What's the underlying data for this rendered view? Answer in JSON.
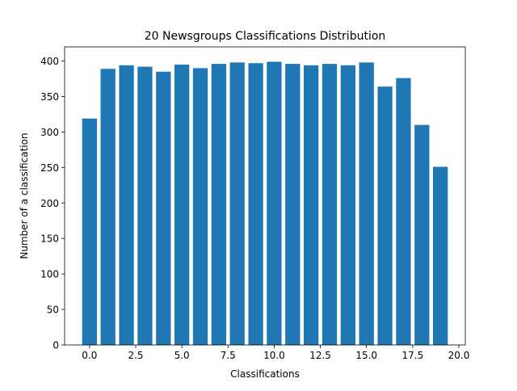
{
  "chart_data": {
    "type": "bar",
    "title": "20 Newsgroups Classifications Distribution",
    "xlabel": "Classifications",
    "ylabel": "Number of a classification",
    "x": [
      0,
      1,
      2,
      3,
      4,
      5,
      6,
      7,
      8,
      9,
      10,
      11,
      12,
      13,
      14,
      15,
      16,
      17,
      18,
      19
    ],
    "values": [
      319,
      389,
      394,
      392,
      385,
      395,
      390,
      396,
      398,
      397,
      399,
      396,
      394,
      396,
      394,
      398,
      364,
      376,
      310,
      251
    ],
    "bar_width": 0.8,
    "xlim": [
      -1.35,
      20.35
    ],
    "ylim": [
      0,
      420
    ],
    "xticks": [
      0,
      2.5,
      5,
      7.5,
      10,
      12.5,
      15,
      17.5,
      20
    ],
    "xtick_labels": [
      "0.0",
      "2.5",
      "5.0",
      "7.5",
      "10.0",
      "12.5",
      "15.0",
      "17.5",
      "20.0"
    ],
    "yticks": [
      0,
      50,
      100,
      150,
      200,
      250,
      300,
      350,
      400
    ],
    "ytick_labels": [
      "0",
      "50",
      "100",
      "150",
      "200",
      "250",
      "300",
      "350",
      "400"
    ],
    "grid": false,
    "legend": "none",
    "bar_color": "#1f77b4"
  }
}
